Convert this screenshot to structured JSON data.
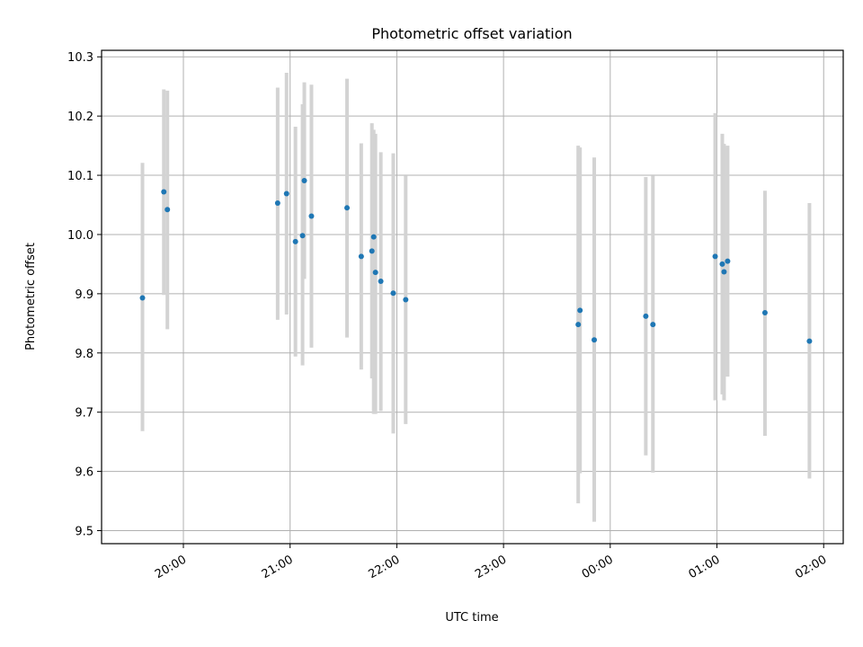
{
  "chart_data": {
    "type": "scatter",
    "title": "Photometric offset variation",
    "xlabel": "UTC time",
    "ylabel": "Photometric offset",
    "x_tick_labels": [
      "20:00",
      "21:00",
      "22:00",
      "23:00",
      "00:00",
      "01:00",
      "02:00"
    ],
    "x_tick_times": [
      "2000-01-01T20:00",
      "2000-01-01T21:00",
      "2000-01-01T22:00",
      "2000-01-01T23:00",
      "2000-01-02T00:00",
      "2000-01-02T01:00",
      "2000-01-02T02:00"
    ],
    "xlim": [
      "2000-01-01T19:14",
      "2000-01-02T02:11"
    ],
    "y_ticks": [
      9.5,
      9.6,
      9.7,
      9.8,
      9.9,
      10.0,
      10.1,
      10.2,
      10.3
    ],
    "ylim": [
      9.478,
      10.311
    ],
    "grid": true,
    "colors": {
      "marker": "#1f77b4",
      "errorbar": "#d3d3d3",
      "grid": "#b0b0b0"
    },
    "points": [
      {
        "t": "2000-01-01T19:37",
        "y": 9.893,
        "ylo": 9.668,
        "yhi": 10.121
      },
      {
        "t": "2000-01-01T19:49",
        "y": 10.072,
        "ylo": 9.898,
        "yhi": 10.245
      },
      {
        "t": "2000-01-01T19:51",
        "y": 10.042,
        "ylo": 9.84,
        "yhi": 10.243
      },
      {
        "t": "2000-01-01T20:53",
        "y": 10.053,
        "ylo": 9.856,
        "yhi": 10.248
      },
      {
        "t": "2000-01-01T20:58",
        "y": 10.069,
        "ylo": 9.865,
        "yhi": 10.273
      },
      {
        "t": "2000-01-01T21:03",
        "y": 9.988,
        "ylo": 9.794,
        "yhi": 10.182
      },
      {
        "t": "2000-01-01T21:07",
        "y": 9.998,
        "ylo": 9.779,
        "yhi": 10.22
      },
      {
        "t": "2000-01-01T21:08",
        "y": 10.091,
        "ylo": 9.925,
        "yhi": 10.257
      },
      {
        "t": "2000-01-01T21:12",
        "y": 10.031,
        "ylo": 9.809,
        "yhi": 10.253
      },
      {
        "t": "2000-01-01T21:32",
        "y": 10.045,
        "ylo": 9.826,
        "yhi": 10.263
      },
      {
        "t": "2000-01-01T21:40",
        "y": 9.963,
        "ylo": 9.772,
        "yhi": 10.154
      },
      {
        "t": "2000-01-01T21:46",
        "y": 9.972,
        "ylo": 9.757,
        "yhi": 10.188
      },
      {
        "t": "2000-01-01T21:47",
        "y": 9.996,
        "ylo": 9.697,
        "yhi": 10.177
      },
      {
        "t": "2000-01-01T21:48",
        "y": 9.936,
        "ylo": 9.697,
        "yhi": 10.17
      },
      {
        "t": "2000-01-01T21:51",
        "y": 9.921,
        "ylo": 9.702,
        "yhi": 10.139
      },
      {
        "t": "2000-01-01T21:58",
        "y": 9.901,
        "ylo": 9.664,
        "yhi": 10.137
      },
      {
        "t": "2000-01-01T22:05",
        "y": 9.89,
        "ylo": 9.68,
        "yhi": 10.099
      },
      {
        "t": "2000-01-01T23:42",
        "y": 9.848,
        "ylo": 9.546,
        "yhi": 10.15
      },
      {
        "t": "2000-01-01T23:43",
        "y": 9.872,
        "ylo": 9.597,
        "yhi": 10.147
      },
      {
        "t": "2000-01-01T23:51",
        "y": 9.822,
        "ylo": 9.515,
        "yhi": 10.13
      },
      {
        "t": "2000-01-02T00:20",
        "y": 9.862,
        "ylo": 9.627,
        "yhi": 10.097
      },
      {
        "t": "2000-01-02T00:24",
        "y": 9.848,
        "ylo": 9.598,
        "yhi": 10.099
      },
      {
        "t": "2000-01-02T00:59",
        "y": 9.963,
        "ylo": 9.72,
        "yhi": 10.205
      },
      {
        "t": "2000-01-02T01:03",
        "y": 9.95,
        "ylo": 9.73,
        "yhi": 10.17
      },
      {
        "t": "2000-01-02T01:04",
        "y": 9.937,
        "ylo": 9.72,
        "yhi": 10.153
      },
      {
        "t": "2000-01-02T01:06",
        "y": 9.955,
        "ylo": 9.76,
        "yhi": 10.15
      },
      {
        "t": "2000-01-02T01:27",
        "y": 9.868,
        "ylo": 9.66,
        "yhi": 10.074
      },
      {
        "t": "2000-01-02T01:52",
        "y": 9.82,
        "ylo": 9.588,
        "yhi": 10.053
      }
    ]
  }
}
